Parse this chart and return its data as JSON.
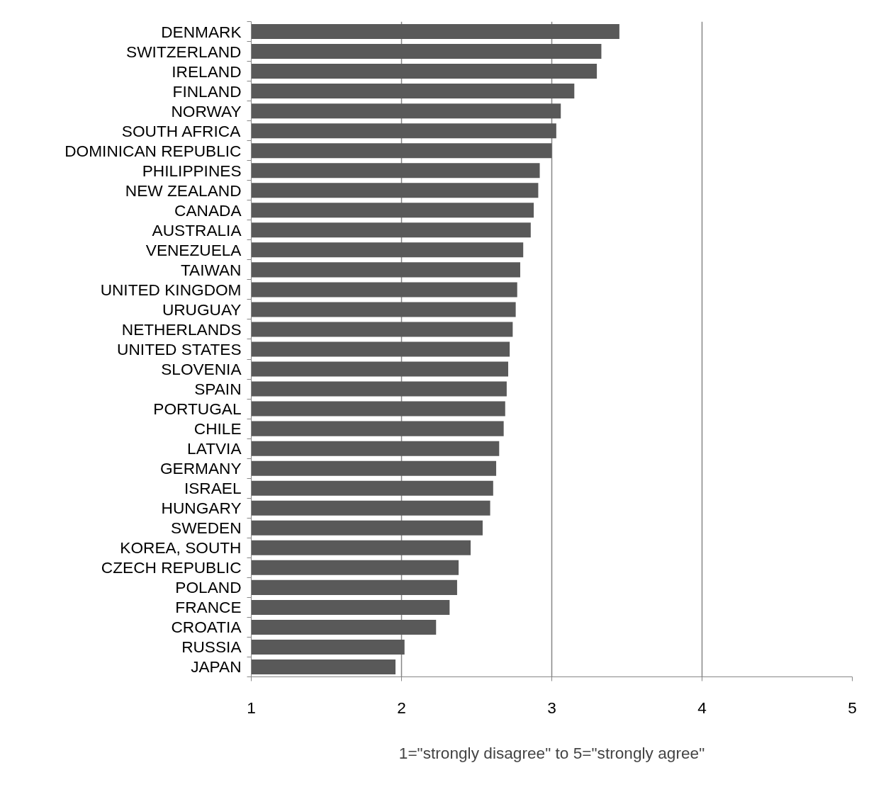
{
  "chart_data": {
    "type": "bar",
    "orientation": "horizontal",
    "xlabel": "1=\"strongly disagree\" to 5=\"strongly agree\"",
    "categories": [
      "DENMARK",
      "SWITZERLAND",
      "IRELAND",
      "FINLAND",
      "NORWAY",
      "SOUTH AFRICA",
      "DOMINICAN REPUBLIC",
      "PHILIPPINES",
      "NEW ZEALAND",
      "CANADA",
      "AUSTRALIA",
      "VENEZUELA",
      "TAIWAN",
      "UNITED KINGDOM",
      "URUGUAY",
      "NETHERLANDS",
      "UNITED STATES",
      "SLOVENIA",
      "SPAIN",
      "PORTUGAL",
      "CHILE",
      "LATVIA",
      "GERMANY",
      "ISRAEL",
      "HUNGARY",
      "SWEDEN",
      "KOREA, SOUTH",
      "CZECH REPUBLIC",
      "POLAND",
      "FRANCE",
      "CROATIA",
      "RUSSIA",
      "JAPAN"
    ],
    "values": [
      3.45,
      3.33,
      3.3,
      3.15,
      3.06,
      3.03,
      3.0,
      2.92,
      2.91,
      2.88,
      2.86,
      2.81,
      2.79,
      2.77,
      2.76,
      2.74,
      2.72,
      2.71,
      2.7,
      2.69,
      2.68,
      2.65,
      2.63,
      2.61,
      2.59,
      2.54,
      2.46,
      2.38,
      2.37,
      2.32,
      2.23,
      2.02,
      1.96
    ],
    "color": "#595959",
    "xlim": [
      1,
      5
    ],
    "xticks": [
      1,
      2,
      3,
      4,
      5
    ],
    "grid": "x"
  }
}
